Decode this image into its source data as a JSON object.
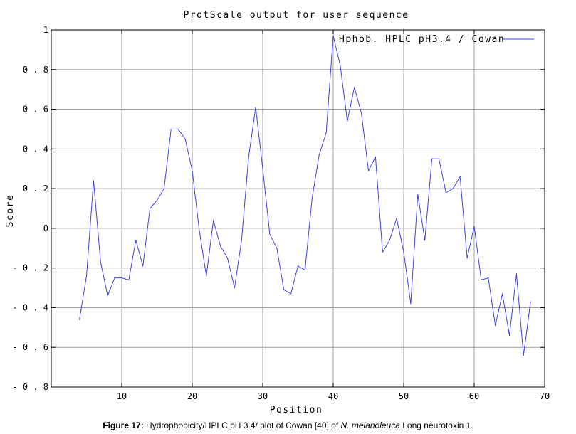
{
  "chart_data": {
    "type": "line",
    "title": "ProtScale output for user sequence",
    "xlabel": "Position",
    "ylabel": "Score",
    "xlim": [
      0,
      70
    ],
    "ylim": [
      -0.8,
      1
    ],
    "x_ticks": [
      10,
      20,
      30,
      40,
      50,
      60,
      70
    ],
    "y_ticks": [
      -0.8,
      -0.6,
      -0.4,
      -0.2,
      0,
      0.2,
      0.4,
      0.6,
      0.8,
      1
    ],
    "x_tick_labels": [
      "10",
      "20",
      "30",
      "40",
      "50",
      "60",
      "70"
    ],
    "y_tick_labels": [
      "- 0 . 8",
      "- 0 . 6",
      "- 0 . 4",
      "- 0 . 2",
      "0",
      "0 . 2",
      "0 . 4",
      "0 . 6",
      "0 . 8",
      "1"
    ],
    "grid": true,
    "legend_position": "top-right",
    "series": [
      {
        "name": "Hphob. HPLC pH3.4 / Cowan",
        "color": "#4040f0",
        "x": [
          4,
          5,
          6,
          7,
          8,
          9,
          10,
          11,
          12,
          13,
          14,
          15,
          16,
          17,
          18,
          19,
          20,
          21,
          22,
          23,
          24,
          25,
          26,
          27,
          28,
          29,
          30,
          31,
          32,
          33,
          34,
          35,
          36,
          37,
          38,
          39,
          40,
          41,
          42,
          43,
          44,
          45,
          46,
          47,
          48,
          49,
          50,
          51,
          52,
          53,
          54,
          55,
          56,
          57,
          58,
          59,
          60,
          61,
          62,
          63,
          64,
          65,
          66,
          67,
          68
        ],
        "values": [
          -0.46,
          -0.24,
          0.24,
          -0.17,
          -0.34,
          -0.25,
          -0.25,
          -0.26,
          -0.06,
          -0.19,
          0.1,
          0.14,
          0.2,
          0.5,
          0.5,
          0.45,
          0.29,
          -0.01,
          -0.24,
          0.04,
          -0.09,
          -0.15,
          -0.3,
          -0.06,
          0.36,
          0.61,
          0.3,
          -0.03,
          -0.1,
          -0.31,
          -0.33,
          -0.19,
          -0.21,
          0.15,
          0.37,
          0.48,
          0.97,
          0.82,
          0.54,
          0.71,
          0.58,
          0.29,
          0.36,
          -0.12,
          -0.06,
          0.05,
          -0.12,
          -0.38,
          0.17,
          -0.06,
          0.35,
          0.35,
          0.18,
          0.2,
          0.26,
          -0.15,
          0.01,
          -0.26,
          -0.25,
          -0.49,
          -0.33,
          -0.54,
          -0.23,
          -0.64,
          -0.37
        ]
      }
    ]
  },
  "caption": {
    "label": "Figure 17:",
    "text": " Hydrophobicity/HPLC pH 3.4/ plot of Cowan [40] of ",
    "species": "N. melanoleuca",
    "suffix": " Long neurotoxin 1."
  }
}
